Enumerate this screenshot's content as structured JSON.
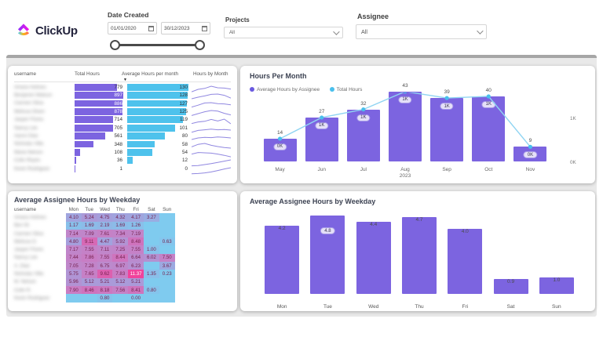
{
  "header": {
    "logo_text": "ClickUp",
    "date_filter": {
      "label": "Date Created",
      "start_value": "01/01/2020",
      "end_value": "30/12/2023"
    },
    "projects_filter": {
      "label": "Projects",
      "value": "All"
    },
    "assignee_filter": {
      "label": "Assignee",
      "value": "All"
    }
  },
  "colors": {
    "purple": "#7c64e0",
    "blue": "#4ec2ec",
    "line_blue": "#8fd4f2",
    "marker_blue": "#49bfec",
    "heat_bg": "#7fcbef",
    "maroon_text": "#76224f",
    "spark": "#9087e0",
    "legend_purple": "#6a5ae0",
    "legend_blue": "#49bfec"
  },
  "assignee_table": {
    "columns": [
      "username",
      "Total Hours",
      "Average Hours per month",
      "Hours by Month"
    ],
    "sorted_by": "Average Hours per month",
    "max_total": 897,
    "max_avg": 130,
    "rows": [
      {
        "name_blurred": "Amara Holmes",
        "total": 779,
        "avg": 130,
        "spark": [
          0.1,
          0.5,
          0.65,
          1.0,
          0.75,
          0.7,
          0.55
        ]
      },
      {
        "name_blurred": "Benjamin Watson",
        "total": 897,
        "avg": 128,
        "spark": [
          0.25,
          0.5,
          0.7,
          0.95,
          1.0,
          0.8,
          0.35
        ]
      },
      {
        "name_blurred": "Carmen Silva",
        "total": 886,
        "avg": 127,
        "spark": [
          0.3,
          0.6,
          0.95,
          1.0,
          0.85,
          0.8,
          0.65
        ]
      },
      {
        "name_blurred": "Melissa Olsen",
        "total": 878,
        "avg": 125,
        "spark": [
          0.2,
          0.5,
          0.8,
          1.0,
          0.9,
          0.55,
          0.3
        ]
      },
      {
        "name_blurred": "Jasper Flores",
        "total": 714,
        "avg": 119,
        "spark": [
          0.3,
          0.55,
          0.65,
          0.95,
          0.7,
          1.0,
          0.25
        ]
      },
      {
        "name_blurred": "Nancy Lee",
        "total": 705,
        "avg": 101,
        "spark": [
          0.15,
          0.45,
          0.55,
          0.65,
          0.55,
          0.6,
          0.5
        ]
      },
      {
        "name_blurred": "Aaron Diaz",
        "total": 561,
        "avg": 80,
        "spark": [
          0.25,
          0.5,
          0.6,
          0.55,
          0.65,
          0.6,
          0.5
        ]
      },
      {
        "name_blurred": "Nicholas Villa",
        "total": 348,
        "avg": 58,
        "spark": [
          0.45,
          0.85,
          1.0,
          0.7,
          0.5,
          0.35,
          0.25
        ]
      },
      {
        "name_blurred": "Maria Nelson",
        "total": 108,
        "avg": 54,
        "spark": [
          0.55,
          0.8,
          0.75,
          0.7,
          0.55,
          0.35,
          0.1
        ]
      },
      {
        "name_blurred": "Colin Reyes",
        "total": 36,
        "avg": 12,
        "spark": [
          0.05,
          0.1,
          0.25,
          0.4,
          0.6,
          0.8,
          1.0
        ]
      },
      {
        "name_blurred": "Kevin Rodriguez",
        "total": 1,
        "avg": 0,
        "spark": [
          0.02,
          0.08,
          0.18,
          0.32,
          0.55,
          0.8,
          1.0
        ]
      }
    ]
  },
  "hours_per_month": {
    "title": "Hours Per Month",
    "legend": [
      {
        "label": "Average Hours by Assignee",
        "color": "#6a5ae0"
      },
      {
        "label": "Total Hours",
        "color": "#49bfec"
      }
    ],
    "categories": [
      "May",
      "Jun",
      "Jul",
      "Aug",
      "Sep",
      "Oct",
      "Nov"
    ],
    "year_label": "2023",
    "year_under_index": 3,
    "avg_hours": [
      14,
      27,
      32,
      43,
      39,
      40,
      9
    ],
    "total_labels": [
      "0K",
      "1K",
      "1K",
      "1K",
      "1K",
      "1K",
      "0K"
    ],
    "y_axis_labels": [
      "1K",
      "0K"
    ]
  },
  "weekday_heatmap": {
    "title": "Average Assignee Hours by Weekday",
    "name_column": "username",
    "day_columns": [
      "Mon",
      "Tue",
      "Wed",
      "Thu",
      "Fri",
      "Sat",
      "Sun"
    ],
    "rows": [
      {
        "name_blurred": "Amara Holmes",
        "values": [
          4.1,
          5.24,
          4.75,
          4.32,
          4.17,
          3.27,
          null
        ]
      },
      {
        "name_blurred": "Ben W.",
        "values": [
          1.17,
          1.69,
          2.19,
          1.69,
          1.26,
          null,
          null
        ]
      },
      {
        "name_blurred": "Carmen Silva",
        "values": [
          7.14,
          7.09,
          7.61,
          7.34,
          7.19,
          null,
          null
        ]
      },
      {
        "name_blurred": "Melissa O.",
        "values": [
          4.8,
          9.11,
          4.47,
          5.92,
          8.48,
          null,
          0.63
        ]
      },
      {
        "name_blurred": "Jasper Flores",
        "values": [
          7.17,
          7.55,
          7.11,
          7.25,
          7.55,
          1.0,
          null
        ]
      },
      {
        "name_blurred": "Nancy Lee",
        "values": [
          7.44,
          7.86,
          7.55,
          8.44,
          6.64,
          6.02,
          7.5
        ]
      },
      {
        "name_blurred": "A. Diaz",
        "values": [
          7.05,
          7.28,
          6.75,
          6.97,
          6.23,
          null,
          3.67
        ]
      },
      {
        "name_blurred": "Nicholas Villa",
        "values": [
          5.75,
          7.65,
          9.62,
          7.83,
          11.37,
          1.35,
          0.23
        ]
      },
      {
        "name_blurred": "M. Nelson",
        "values": [
          5.96,
          5.12,
          5.21,
          5.12,
          5.21,
          null,
          null
        ]
      },
      {
        "name_blurred": "Colin R.",
        "values": [
          7.9,
          8.46,
          8.18,
          7.56,
          8.41,
          0.8,
          null
        ]
      },
      {
        "name_blurred": "Kevin Rodriguez",
        "values": [
          null,
          null,
          0.8,
          null,
          0.0,
          null,
          null
        ]
      }
    ]
  },
  "weekday_bars": {
    "title": "Average Assignee Hours by Weekday",
    "categories": [
      "Mon",
      "Tue",
      "Wed",
      "Thu",
      "Fri",
      "Sat",
      "Sun"
    ],
    "values": [
      4.2,
      4.8,
      4.4,
      4.7,
      4.0,
      0.9,
      1.0
    ],
    "pill_index": 1
  },
  "chart_data": [
    {
      "type": "bar",
      "title": "Hours Per Month",
      "categories": [
        "May 2023",
        "Jun 2023",
        "Jul 2023",
        "Aug 2023",
        "Sep 2023",
        "Oct 2023",
        "Nov 2023"
      ],
      "series": [
        {
          "name": "Average Hours by Assignee",
          "type": "line",
          "values": [
            14,
            27,
            32,
            43,
            39,
            40,
            9
          ]
        },
        {
          "name": "Total Hours",
          "type": "bar",
          "value_labels": [
            "0K",
            "1K",
            "1K",
            "1K",
            "1K",
            "1K",
            "0K"
          ]
        }
      ],
      "ylabel": "",
      "y_ticks": [
        "0K",
        "1K"
      ],
      "legend_position": "top-left",
      "grid": false
    },
    {
      "type": "heatmap",
      "title": "Average Assignee Hours by Weekday",
      "x_categories": [
        "Mon",
        "Tue",
        "Wed",
        "Thu",
        "Fri",
        "Sat",
        "Sun"
      ],
      "values_by_row": [
        [
          4.1,
          5.24,
          4.75,
          4.32,
          4.17,
          3.27,
          null
        ],
        [
          1.17,
          1.69,
          2.19,
          1.69,
          1.26,
          null,
          null
        ],
        [
          7.14,
          7.09,
          7.61,
          7.34,
          7.19,
          null,
          null
        ],
        [
          4.8,
          9.11,
          4.47,
          5.92,
          8.48,
          null,
          0.63
        ],
        [
          7.17,
          7.55,
          7.11,
          7.25,
          7.55,
          1.0,
          null
        ],
        [
          7.44,
          7.86,
          7.55,
          8.44,
          6.64,
          6.02,
          7.5
        ],
        [
          7.05,
          7.28,
          6.75,
          6.97,
          6.23,
          null,
          3.67
        ],
        [
          5.75,
          7.65,
          9.62,
          7.83,
          11.37,
          1.35,
          0.23
        ],
        [
          5.96,
          5.12,
          5.21,
          5.12,
          5.21,
          null,
          null
        ],
        [
          7.9,
          8.46,
          8.18,
          7.56,
          8.41,
          0.8,
          null
        ],
        [
          null,
          null,
          0.8,
          null,
          0.0,
          null,
          null
        ]
      ],
      "color_scale": [
        "#7fcbef",
        "#a59fdc",
        "#c77fc5",
        "#f0439b"
      ]
    },
    {
      "type": "bar",
      "title": "Average Assignee Hours by Weekday",
      "categories": [
        "Mon",
        "Tue",
        "Wed",
        "Thu",
        "Fri",
        "Sat",
        "Sun"
      ],
      "values": [
        4.2,
        4.8,
        4.4,
        4.7,
        4.0,
        0.9,
        1.0
      ],
      "ylim": [
        0,
        5
      ],
      "grid": false
    }
  ]
}
